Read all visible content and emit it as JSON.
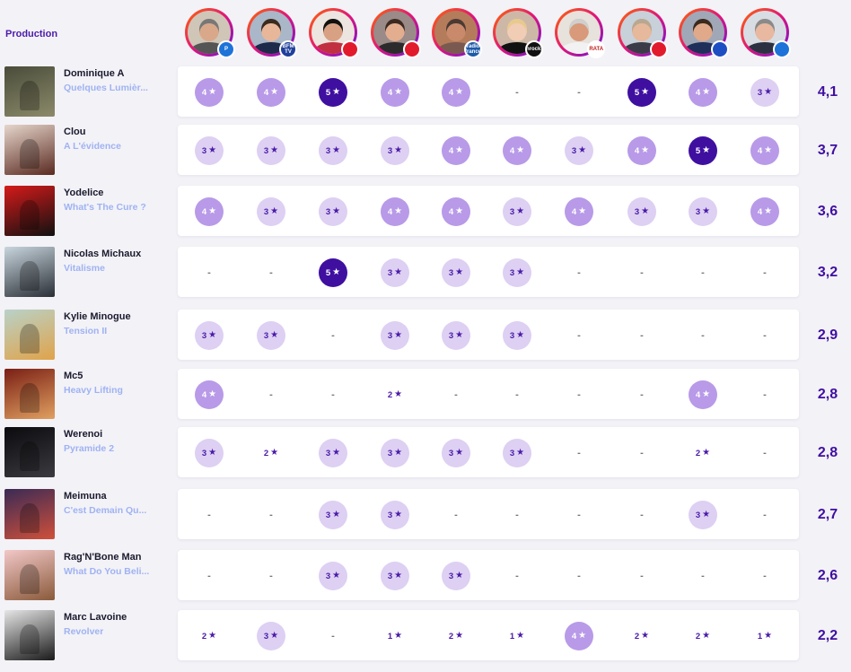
{
  "header": {
    "label": "Production"
  },
  "critics": [
    {
      "name": "critic-1",
      "badge": "P",
      "badge_color": "#1e73d8",
      "skin": "#d9a88a",
      "hair": "#777777",
      "shirt": "#555555",
      "bg": "#cfc6b8"
    },
    {
      "name": "critic-2",
      "badge": "BFM TV",
      "badge_color": "#1f3f9a",
      "skin": "#e8b79a",
      "hair": "#3a2a20",
      "shirt": "#1d2a4a",
      "bg": "#a9b7c8"
    },
    {
      "name": "critic-3",
      "badge": "",
      "badge_color": "#e21b2c",
      "skin": "#d9a184",
      "hair": "#111111",
      "shirt": "#c03040",
      "bg": "#ede5df"
    },
    {
      "name": "critic-4",
      "badge": "",
      "badge_color": "#e21b2c",
      "skin": "#e3ad90",
      "hair": "#3b2a22",
      "shirt": "#2b2b2b",
      "bg": "#9a8a88"
    },
    {
      "name": "critic-5",
      "badge": "radio france",
      "badge_color": "#1e5aa8",
      "skin": "#c98a6c",
      "hair": "#4a3a33",
      "shirt": "#7a5a50",
      "bg": "#b57c5c"
    },
    {
      "name": "critic-6",
      "badge": "Inrocks",
      "badge_color": "#111111",
      "skin": "#f0cdb4",
      "hair": "#e8c98e",
      "shirt": "#111111",
      "bg": "#cdb8a8"
    },
    {
      "name": "critic-7",
      "badge": "TARATATA",
      "badge_color": "#ffffff",
      "skin": "#d89a7a",
      "hair": "#cfcfcf",
      "shirt": "#f2f2f2",
      "bg": "#e7e2db"
    },
    {
      "name": "critic-8",
      "badge": "",
      "badge_color": "#e21b2c",
      "skin": "#e6b89c",
      "hair": "#b8a890",
      "shirt": "#3b3b48",
      "bg": "#c8d0da"
    },
    {
      "name": "critic-9",
      "badge": "",
      "badge_color": "#1e4fc2",
      "skin": "#e0a98a",
      "hair": "#3a2a1e",
      "shirt": "#1e2f5a",
      "bg": "#a0a8b8"
    },
    {
      "name": "critic-10",
      "badge": "",
      "badge_color": "#1e73d8",
      "skin": "#e8b8a0",
      "hair": "#8a8a8a",
      "shirt": "#2b3140",
      "bg": "#d8dde3"
    }
  ],
  "rows": [
    {
      "artist": "Dominique A",
      "album": "Quelques Lumièr...",
      "avg": "4,1",
      "cover": [
        "#4a4c3a",
        "#8b8a6a"
      ],
      "ratings": [
        "4",
        "4",
        "5",
        "4",
        "4",
        "-",
        "-",
        "5",
        "4",
        "3"
      ]
    },
    {
      "artist": "Clou",
      "album": "A L'évidence",
      "avg": "3,7",
      "cover": [
        "#e6d6cc",
        "#5a2a20"
      ],
      "ratings": [
        "3",
        "3",
        "3",
        "3",
        "4",
        "4",
        "3",
        "4",
        "5",
        "4"
      ]
    },
    {
      "artist": "Yodelice",
      "album": "What's The Cure ?",
      "avg": "3,6",
      "cover": [
        "#d61a1a",
        "#111111"
      ],
      "ratings": [
        "4",
        "3",
        "3",
        "4",
        "4",
        "3",
        "4",
        "3",
        "3",
        "4"
      ]
    },
    {
      "artist": "Nicolas Michaux",
      "album": "Vitalisme",
      "avg": "3,2",
      "cover": [
        "#c9d6de",
        "#2a2f36"
      ],
      "ratings": [
        "-",
        "-",
        "5",
        "3",
        "3",
        "3",
        "-",
        "-",
        "-",
        "-"
      ]
    },
    {
      "artist": "Kylie Minogue",
      "album": "Tension II",
      "avg": "2,9",
      "cover": [
        "#b8d2c8",
        "#e0a34a"
      ],
      "ratings": [
        "3",
        "3",
        "-",
        "3",
        "3",
        "3",
        "-",
        "-",
        "-",
        "-"
      ]
    },
    {
      "artist": "Mc5",
      "album": "Heavy Lifting",
      "avg": "2,8",
      "cover": [
        "#7a1f15",
        "#e0a060"
      ],
      "ratings": [
        "4",
        "-",
        "-",
        "2p",
        "-",
        "-",
        "-",
        "-",
        "4",
        "-"
      ]
    },
    {
      "artist": "Werenoi",
      "album": "Pyramide 2",
      "avg": "2,8",
      "cover": [
        "#0b0b0e",
        "#3a3a40"
      ],
      "ratings": [
        "3",
        "2p",
        "3",
        "3",
        "3",
        "3",
        "-",
        "-",
        "2p",
        "-"
      ]
    },
    {
      "artist": "Meimuna",
      "album": "C'est Demain Qu...",
      "avg": "2,7",
      "cover": [
        "#3a2a55",
        "#d0503a"
      ],
      "ratings": [
        "-",
        "-",
        "3",
        "3",
        "-",
        "-",
        "-",
        "-",
        "3",
        "-"
      ]
    },
    {
      "artist": "Rag'N'Bone Man",
      "album": "What Do You Beli...",
      "avg": "2,6",
      "cover": [
        "#f2c8c8",
        "#8a5a3a"
      ],
      "ratings": [
        "-",
        "-",
        "3",
        "3",
        "3",
        "-",
        "-",
        "-",
        "-",
        "-"
      ]
    },
    {
      "artist": "Marc Lavoine",
      "album": "Revolver",
      "avg": "2,2",
      "cover": [
        "#e6e6e6",
        "#1a1a1a"
      ],
      "ratings": [
        "2p",
        "3",
        "-",
        "1p",
        "2p",
        "1p",
        "4",
        "2p",
        "2p",
        "1p"
      ]
    }
  ]
}
